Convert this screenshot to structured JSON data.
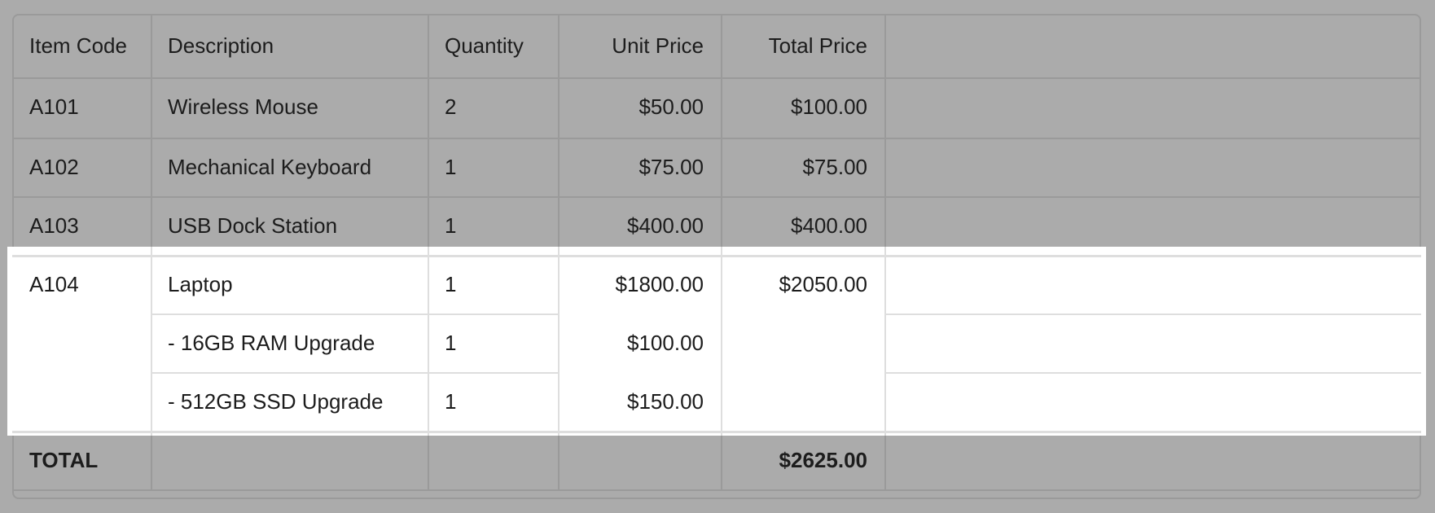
{
  "table": {
    "headers": [
      "Item Code",
      "Description",
      "Quantity",
      "Unit Price",
      "Total Price",
      ""
    ],
    "rows": [
      {
        "code": "A101",
        "description": "Wireless Mouse",
        "quantity": "2",
        "unit_price": "$50.00",
        "total_price": "$100.00"
      },
      {
        "code": "A102",
        "description": "Mechanical Keyboard",
        "quantity": "1",
        "unit_price": "$75.00",
        "total_price": "$75.00"
      },
      {
        "code": "A103",
        "description": "USB Dock Station",
        "quantity": "1",
        "unit_price": "$400.00",
        "total_price": "$400.00"
      },
      {
        "code": "A104",
        "description": "Laptop",
        "quantity": "1",
        "unit_price": "$1800.00",
        "total_price": "$2050.00"
      },
      {
        "code": "",
        "description": "- 16GB RAM Upgrade",
        "quantity": "1",
        "unit_price": "$100.00",
        "total_price": ""
      },
      {
        "code": "",
        "description": "- 512GB SSD Upgrade",
        "quantity": "1",
        "unit_price": "$150.00",
        "total_price": ""
      }
    ],
    "footer": {
      "label": "TOTAL",
      "total_price": "$2625.00"
    }
  },
  "colors": {
    "dim_background": "#ababab",
    "highlight": "#ffffff"
  }
}
